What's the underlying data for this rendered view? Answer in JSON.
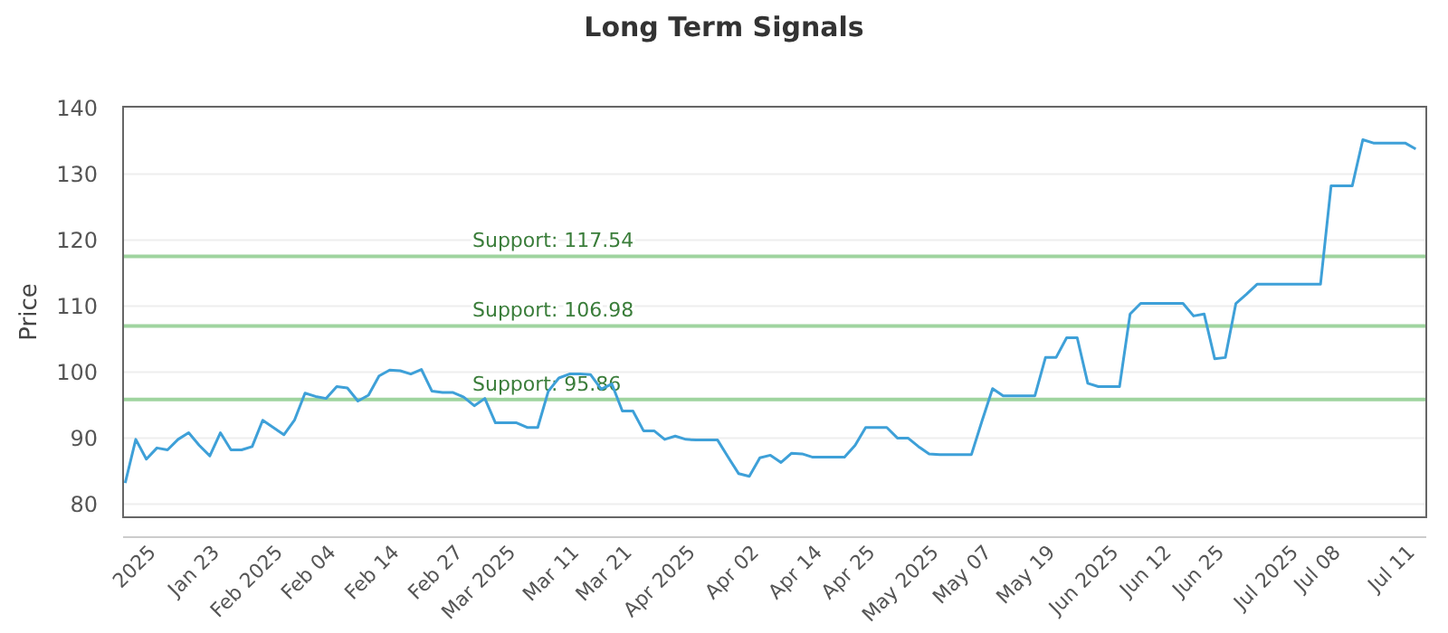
{
  "chart_data": {
    "type": "line",
    "title": "Long Term Signals",
    "ylabel": "Price",
    "categories": [
      null,
      null,
      null,
      "2025",
      null,
      null,
      null,
      null,
      null,
      "Jan 23",
      null,
      null,
      null,
      null,
      null,
      "Feb 2025",
      null,
      null,
      null,
      null,
      "Feb 04",
      null,
      null,
      null,
      null,
      null,
      "Feb 14",
      null,
      null,
      null,
      null,
      null,
      "Feb 27",
      null,
      null,
      null,
      null,
      "Mar 2025",
      null,
      null,
      null,
      null,
      null,
      "Mar 11",
      null,
      null,
      null,
      null,
      "Mar 21",
      null,
      null,
      null,
      null,
      null,
      "Apr 2025",
      null,
      null,
      null,
      null,
      null,
      "Apr 02",
      null,
      null,
      null,
      null,
      null,
      "Apr 14",
      null,
      null,
      null,
      null,
      "Apr 25",
      null,
      null,
      null,
      null,
      null,
      "May 2025",
      null,
      null,
      null,
      null,
      "May 07",
      null,
      null,
      null,
      null,
      null,
      "May 19",
      null,
      null,
      null,
      null,
      null,
      "Jun 2025",
      null,
      null,
      null,
      null,
      "Jun 12",
      null,
      null,
      null,
      null,
      "Jun 25",
      null,
      null,
      null,
      null,
      null,
      null,
      "Jul 2025",
      null,
      null,
      null,
      "Jul 08",
      null,
      null,
      null,
      null,
      null,
      null,
      "Jul 11"
    ],
    "series": [
      {
        "color": "#3ea0d8",
        "values": [
          83.2,
          89.8,
          86.8,
          88.5,
          88.2,
          89.8,
          90.8,
          88.9,
          87.3,
          90.8,
          88.2,
          88.2,
          88.7,
          92.7,
          91.6,
          90.5,
          92.7,
          96.8,
          96.3,
          96.0,
          97.8,
          97.6,
          95.6,
          96.5,
          99.4,
          100.3,
          100.2,
          99.7,
          100.4,
          97.1,
          96.9,
          96.9,
          96.2,
          94.9,
          96.0,
          92.3,
          92.3,
          92.3,
          91.6,
          91.6,
          97.1,
          99.1,
          99.7,
          99.7,
          99.6,
          97.4,
          98.2,
          94.1,
          94.1,
          91.1,
          91.1,
          89.8,
          90.3,
          89.8,
          89.7,
          89.7,
          89.7,
          87.1,
          84.6,
          84.2,
          87.0,
          87.4,
          86.3,
          87.7,
          87.6,
          87.1,
          87.1,
          87.1,
          87.1,
          88.9,
          91.6,
          91.6,
          91.6,
          90.0,
          90.0,
          88.7,
          87.6,
          87.5,
          87.5,
          87.5,
          87.5,
          92.6,
          97.5,
          96.4,
          96.4,
          96.4,
          96.4,
          102.2,
          102.2,
          105.2,
          105.2,
          98.3,
          97.8,
          97.8,
          97.8,
          108.8,
          110.4,
          110.4,
          110.4,
          110.4,
          110.4,
          108.5,
          108.8,
          102.0,
          102.2,
          110.4,
          111.8,
          113.3,
          113.3,
          113.3,
          113.3,
          113.3,
          113.3,
          113.3,
          128.2,
          128.2,
          128.2,
          135.2,
          134.7,
          134.7,
          134.7,
          134.7,
          133.8
        ]
      }
    ],
    "ylim": [
      78,
      140.2
    ],
    "yticks": [
      80,
      90,
      100,
      110,
      120,
      130,
      140
    ],
    "grid": "y",
    "marker": "none",
    "line_style": "solid",
    "ref_lines": [
      {
        "axis": "y",
        "value": 117.54,
        "label": "Support: 117.54",
        "color": "#9fd49f"
      },
      {
        "axis": "y",
        "value": 106.98,
        "label": "Support: 106.98",
        "color": "#9fd49f"
      },
      {
        "axis": "y",
        "value": 95.86,
        "label": "Support: 95.86",
        "color": "#9fd49f"
      }
    ]
  }
}
